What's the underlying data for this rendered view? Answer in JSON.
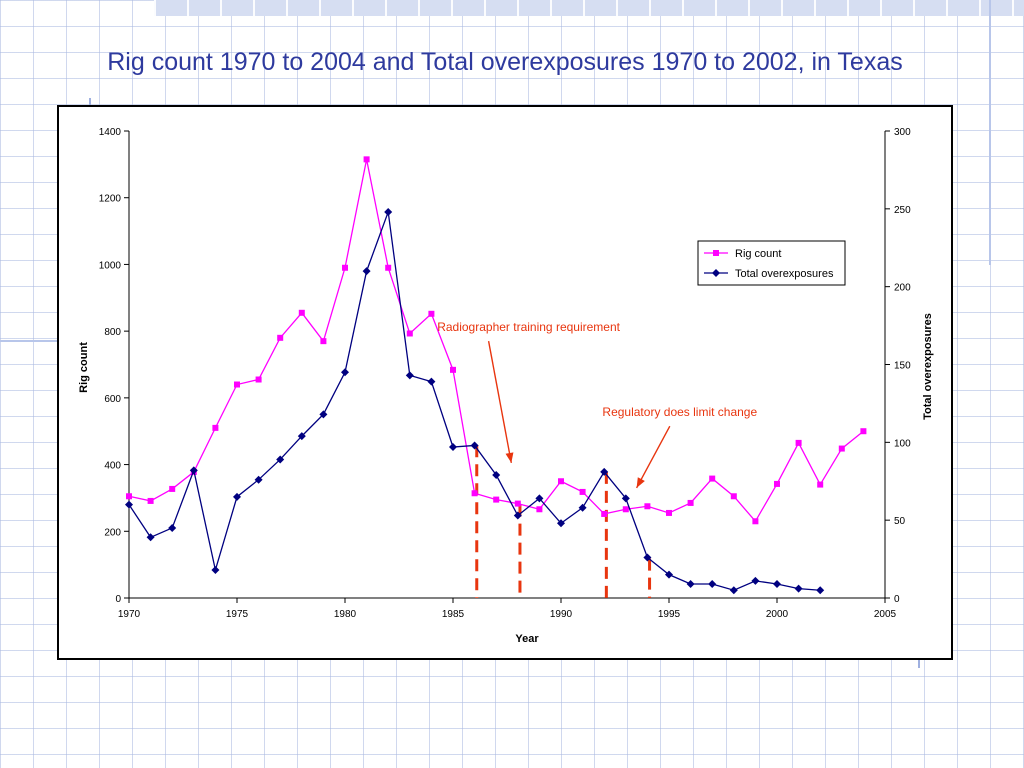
{
  "slide": {
    "title": "Rig count 1970 to 2004 and Total overexposures 1970 to 2002, in Texas"
  },
  "colors": {
    "rig_series": "#ff00ff",
    "overexposure_series": "#000080",
    "annotation": "#e8350f",
    "title": "#2e3a9e"
  },
  "chart_data": {
    "type": "line",
    "xlabel": "Year",
    "ylabel": "Rig count",
    "y2label": "Total overexposures",
    "xlim": [
      1970,
      2005
    ],
    "ylim": [
      0,
      1400
    ],
    "y2lim": [
      0,
      300
    ],
    "xticks": [
      1970,
      1975,
      1980,
      1985,
      1990,
      1995,
      2000,
      2005
    ],
    "yticks": [
      0,
      200,
      400,
      600,
      800,
      1000,
      1200,
      1400
    ],
    "y2ticks": [
      0,
      50,
      100,
      150,
      200,
      250,
      300
    ],
    "grid": false,
    "legend_position": "top-right",
    "series": [
      {
        "name": "Rig count",
        "axis": "left",
        "marker": "square",
        "x": [
          1970,
          1971,
          1972,
          1973,
          1974,
          1975,
          1976,
          1977,
          1978,
          1979,
          1980,
          1981,
          1982,
          1983,
          1984,
          1985,
          1986,
          1987,
          1988,
          1989,
          1990,
          1991,
          1992,
          1993,
          1994,
          1995,
          1996,
          1997,
          1998,
          1999,
          2000,
          2001,
          2002,
          2003,
          2004
        ],
        "values": [
          305,
          291,
          327,
          378,
          510,
          640,
          655,
          780,
          855,
          770,
          990,
          1315,
          990,
          793,
          852,
          684,
          314,
          295,
          283,
          266,
          350,
          318,
          252,
          266,
          275,
          255,
          285,
          358,
          305,
          230,
          342,
          465,
          340,
          448,
          500
        ]
      },
      {
        "name": "Total overexposures",
        "axis": "right",
        "marker": "diamond",
        "x": [
          1970,
          1971,
          1972,
          1973,
          1974,
          1975,
          1976,
          1977,
          1978,
          1979,
          1980,
          1981,
          1982,
          1983,
          1984,
          1985,
          1986,
          1987,
          1988,
          1989,
          1990,
          1991,
          1992,
          1993,
          1994,
          1995,
          1996,
          1997,
          1998,
          1999,
          2000,
          2001,
          2002
        ],
        "values": [
          60,
          39,
          45,
          82,
          18,
          65,
          76,
          89,
          104,
          118,
          145,
          210,
          248,
          143,
          139,
          97,
          98,
          79,
          53,
          64,
          48,
          58,
          81,
          64,
          26,
          15,
          9,
          9,
          5,
          11,
          9,
          6,
          5
        ]
      }
    ],
    "markers": [
      {
        "year": 1986.1,
        "value": 458
      },
      {
        "year": 1988.1,
        "value": 280
      },
      {
        "year": 1992.1,
        "value": 378
      },
      {
        "year": 1994.1,
        "value": 118
      }
    ],
    "annotations": [
      {
        "text": "Radiographer training requirement",
        "x": 1988.5,
        "y": 800,
        "arrow_to": [
          1987.7,
          405
        ]
      },
      {
        "text": "Regulatory does limit change",
        "x": 1995.5,
        "y": 545,
        "arrow_to": [
          1993.5,
          330
        ]
      }
    ]
  }
}
